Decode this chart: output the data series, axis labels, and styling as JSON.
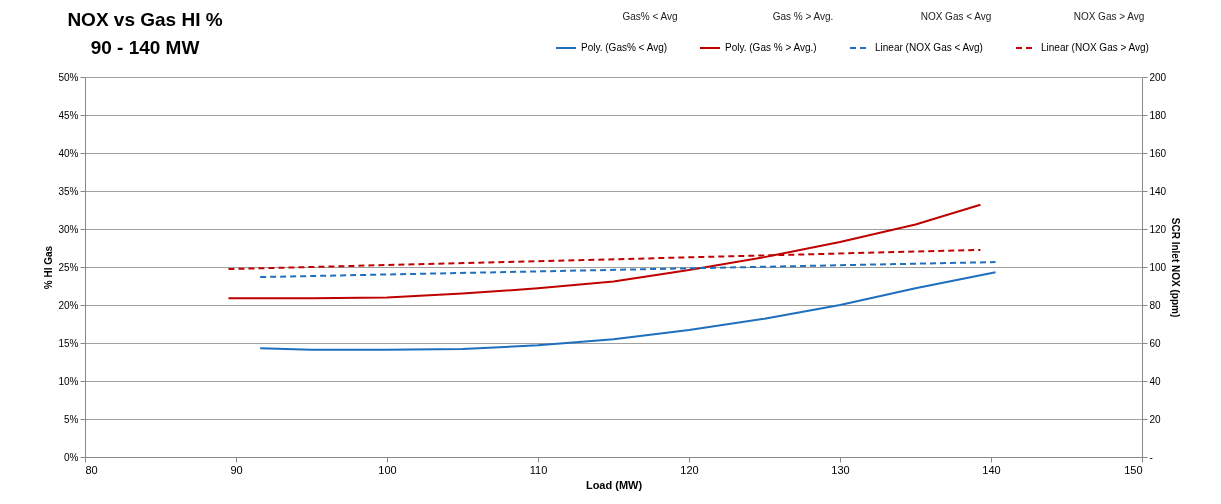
{
  "chart_data": {
    "type": "line",
    "title": "NOX vs Gas HI %",
    "subtitle": "90 - 140 MW",
    "xlabel": "Load (MW)",
    "ylabel": "% HI Gas",
    "y2label": "SCR Inlet NOX (ppm)",
    "annotations": [
      "Gas% < Avg",
      "Gas % > Avg.",
      "NOX Gas < Avg",
      "NOX Gas > Avg"
    ],
    "series": [
      {
        "name": "Poly. (Gas% < Avg)",
        "color": "#1f6fbf",
        "line_style": "solid",
        "x": [
          91.6,
          95,
          100,
          105,
          110,
          115,
          120,
          125,
          130,
          135,
          140.3
        ],
        "values": [
          14.3,
          14.1,
          14.1,
          14.2,
          14.7,
          15.5,
          16.7,
          18.2,
          20.0,
          22.2,
          24.3
        ]
      },
      {
        "name": "Poly. (Gas % > Avg.)",
        "color": "#c00000",
        "line_style": "solid",
        "x": [
          89.5,
          95,
          100,
          105,
          110,
          115,
          120,
          125,
          130,
          135,
          139.3
        ],
        "values": [
          20.9,
          20.9,
          21.0,
          21.5,
          22.2,
          23.1,
          24.6,
          26.3,
          28.3,
          30.6,
          33.2
        ]
      },
      {
        "name": "Linear (NOX Gas < Avg)",
        "color": "#1f6fbf",
        "line_style": "dashed",
        "axis": "y2",
        "x": [
          91.6,
          140.3
        ],
        "values": [
          94.7,
          102.6
        ]
      },
      {
        "name": "Linear (NOX Gas > Avg)",
        "color": "#c00000",
        "line_style": "dashed",
        "axis": "y2",
        "x": [
          89.5,
          139.3
        ],
        "values": [
          98.9,
          109.0
        ]
      }
    ],
    "xlim": [
      80,
      150
    ],
    "xticks": [
      80,
      90,
      100,
      110,
      120,
      130,
      140,
      150
    ],
    "ylim": [
      0,
      50
    ],
    "yticks": [
      {
        "value": 0,
        "label": "0%"
      },
      {
        "value": 5,
        "label": "5%"
      },
      {
        "value": 10,
        "label": "10%"
      },
      {
        "value": 15,
        "label": "15%"
      },
      {
        "value": 20,
        "label": "20%"
      },
      {
        "value": 25,
        "label": "25%"
      },
      {
        "value": 30,
        "label": "30%"
      },
      {
        "value": 35,
        "label": "35%"
      },
      {
        "value": 40,
        "label": "40%"
      },
      {
        "value": 45,
        "label": "45%"
      },
      {
        "value": 50,
        "label": "50%"
      }
    ],
    "y2lim": [
      0,
      200
    ],
    "y2ticks": [
      {
        "value": 0,
        "label": "-"
      },
      20,
      40,
      60,
      80,
      100,
      120,
      140,
      160,
      180,
      200
    ],
    "grid": "y",
    "legend": "top",
    "marker": "none"
  }
}
